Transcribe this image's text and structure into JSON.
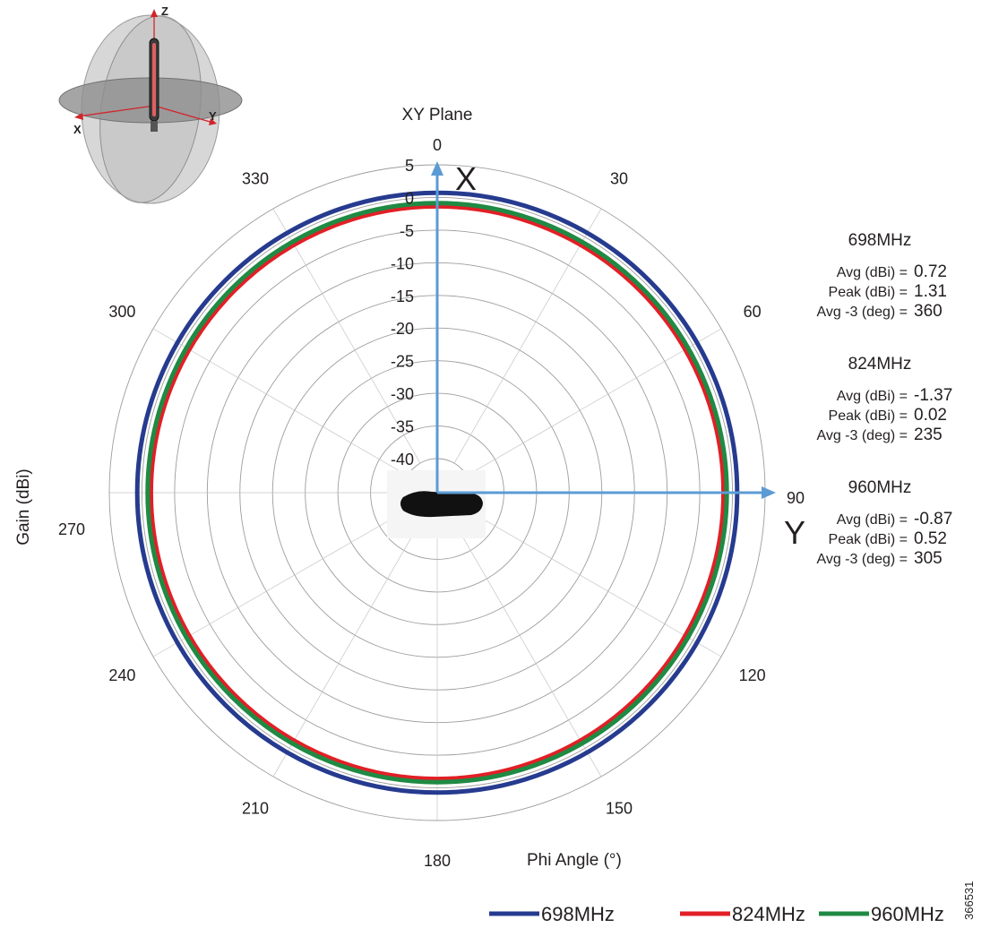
{
  "chart_data": {
    "type": "polar",
    "title": "XY Plane",
    "radial_axis": {
      "label": "Gain (dBi)",
      "range": [
        -40,
        5
      ],
      "ticks": [
        "5",
        "0",
        "-5",
        "-10",
        "-15",
        "-20",
        "-25",
        "-30",
        "-35",
        "-40"
      ]
    },
    "angular_axis": {
      "label": "Phi  Angle (°)",
      "unit": "degrees",
      "ticks": [
        "0",
        "30",
        "60",
        "90",
        "120",
        "150",
        "180",
        "210",
        "240",
        "270",
        "300",
        "330"
      ]
    },
    "axis_arrows": {
      "x_label": "X",
      "y_label": "Y"
    },
    "series": [
      {
        "name": "698MHz",
        "color": "#263b8f",
        "gain_dbi": 0.72
      },
      {
        "name": "824MHz",
        "color": "#e21f26",
        "gain_dbi": -1.37
      },
      {
        "name": "960MHz",
        "color": "#1f8a43",
        "gain_dbi": -0.87
      }
    ],
    "stats": [
      {
        "band": "698MHz",
        "rows": [
          {
            "label": "Avg (dBi) =",
            "value": "0.72"
          },
          {
            "label": "Peak (dBi) =",
            "value": "1.31"
          },
          {
            "label": "Avg -3 (deg) =",
            "value": "360"
          }
        ]
      },
      {
        "band": "824MHz",
        "rows": [
          {
            "label": "Avg (dBi) =",
            "value": "-1.37"
          },
          {
            "label": "Peak (dBi) =",
            "value": "0.02"
          },
          {
            "label": "Avg -3 (deg) =",
            "value": "235"
          }
        ]
      },
      {
        "band": "960MHz",
        "rows": [
          {
            "label": "Avg (dBi) =",
            "value": "-0.87"
          },
          {
            "label": "Peak (dBi) =",
            "value": "0.52"
          },
          {
            "label": "Avg -3 (deg) =",
            "value": "305"
          }
        ]
      }
    ],
    "legend_position": "bottom-right",
    "grid": true
  },
  "orientation_diagram": {
    "axis_labels": [
      "Z",
      "X",
      "Y"
    ]
  },
  "figure_id": "366531"
}
